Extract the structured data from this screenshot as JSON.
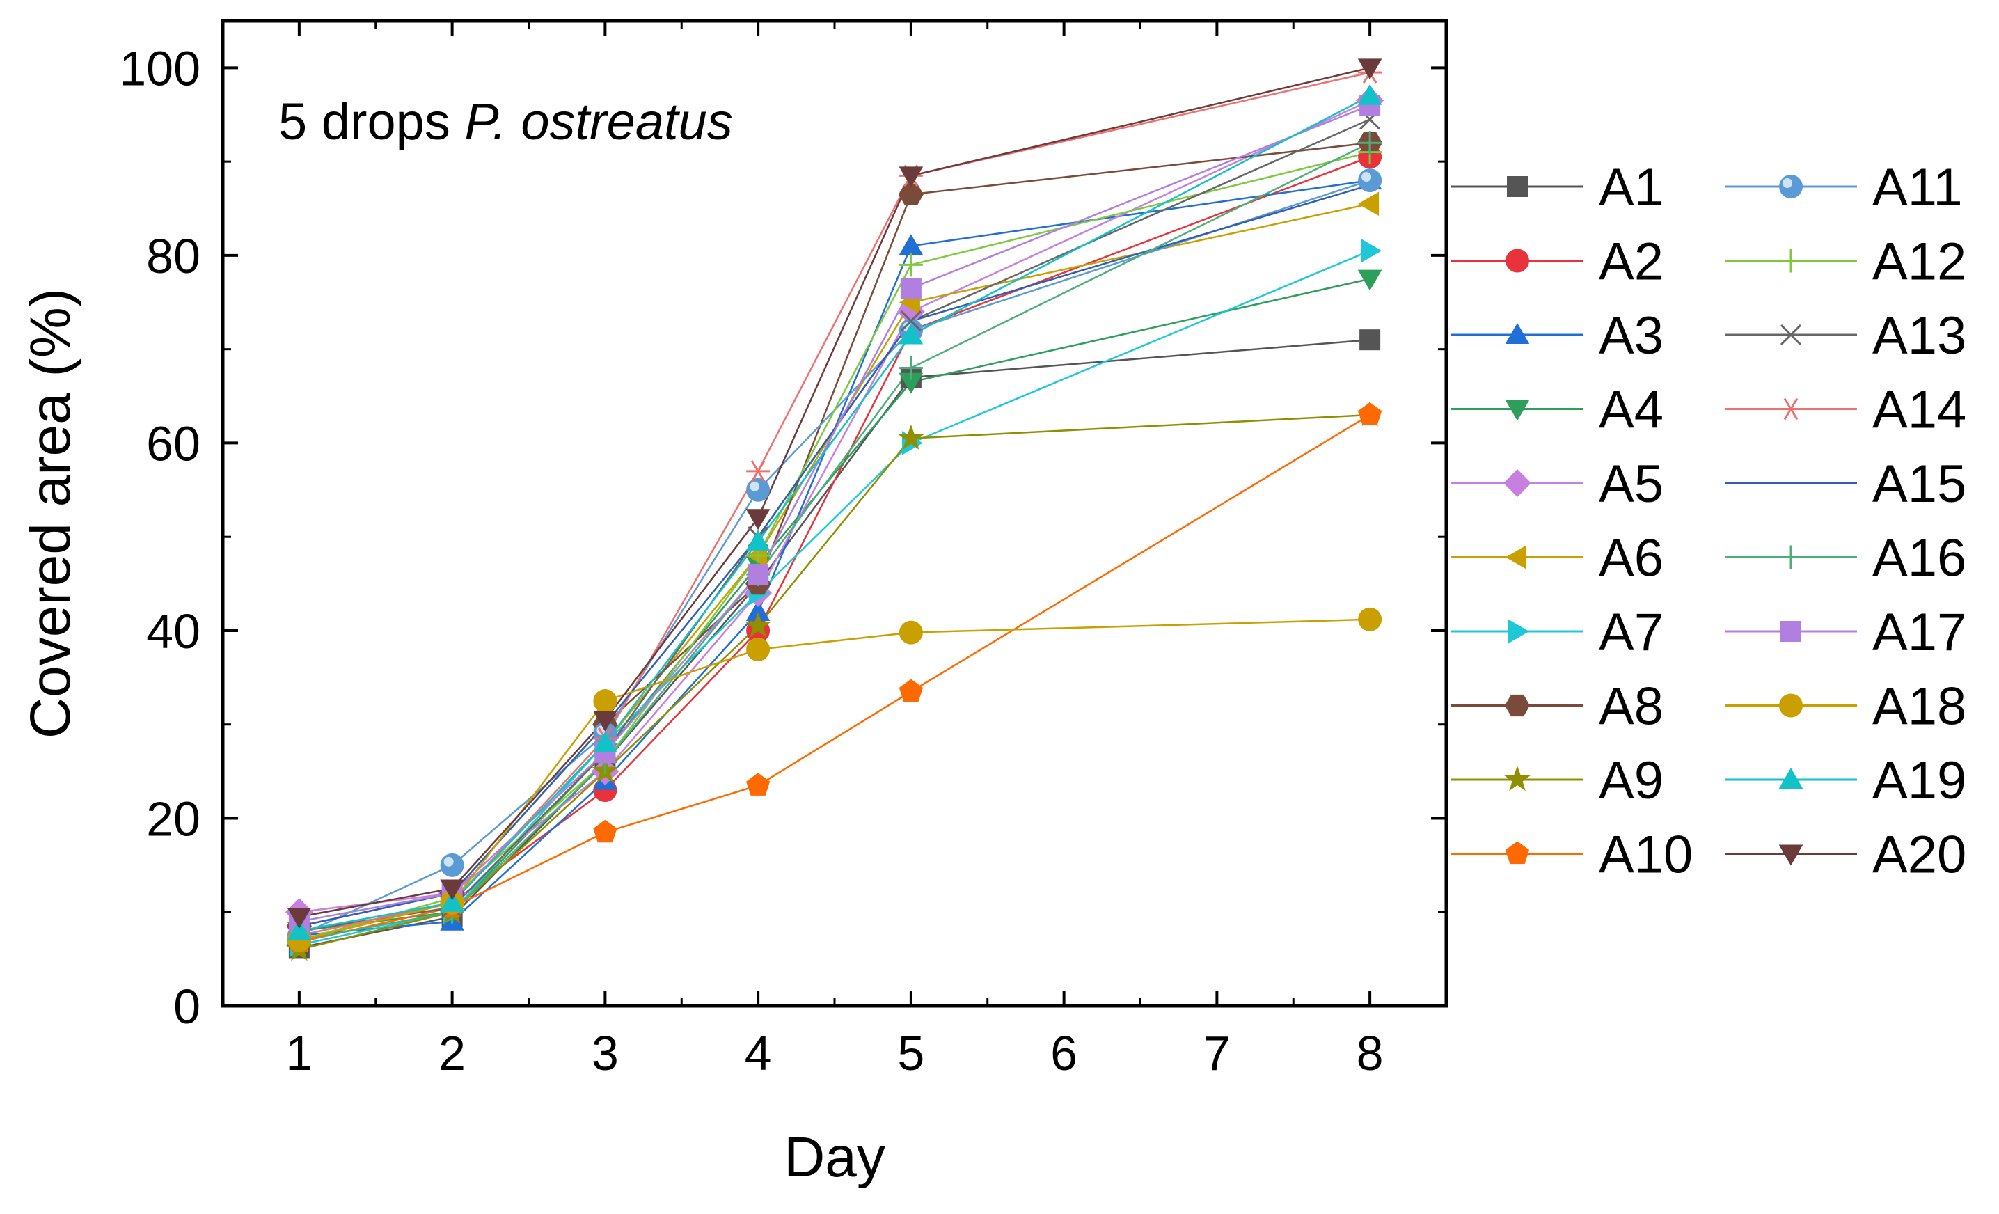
{
  "chart_data": {
    "type": "line",
    "title": "",
    "annotation": {
      "text": "5 drops ",
      "italic_text": "P. ostreatus"
    },
    "xlabel": "Day",
    "ylabel": "Covered area (%)",
    "x": [
      1,
      2,
      3,
      4,
      5,
      8
    ],
    "xlim": [
      0.5,
      8.5
    ],
    "ylim": [
      0,
      105
    ],
    "x_ticks": [
      1,
      2,
      3,
      4,
      5,
      6,
      7,
      8
    ],
    "y_ticks": [
      0,
      20,
      40,
      60,
      80,
      100
    ],
    "grid": false,
    "legend_position": "right",
    "series": [
      {
        "name": "A1",
        "color": "#555555",
        "marker": "square",
        "values": [
          6.2,
          9.5,
          26.0,
          45.0,
          67.0,
          71.0
        ]
      },
      {
        "name": "A2",
        "color": "#e8323c",
        "marker": "circle",
        "values": [
          7.0,
          11.0,
          23.0,
          40.0,
          72.0,
          90.5
        ]
      },
      {
        "name": "A3",
        "color": "#1f6fd6",
        "marker": "triangle-up",
        "values": [
          7.5,
          9.0,
          24.0,
          42.0,
          81.0,
          88.0
        ]
      },
      {
        "name": "A4",
        "color": "#2e9e5b",
        "marker": "triangle-down",
        "values": [
          8.0,
          10.0,
          27.0,
          47.0,
          66.5,
          77.5
        ]
      },
      {
        "name": "A5",
        "color": "#c77fe0",
        "marker": "diamond",
        "values": [
          10.0,
          12.0,
          25.0,
          44.0,
          74.0,
          96.5
        ]
      },
      {
        "name": "A6",
        "color": "#c9a000",
        "marker": "triangle-left",
        "values": [
          7.0,
          11.0,
          28.0,
          48.0,
          75.0,
          85.5
        ]
      },
      {
        "name": "A7",
        "color": "#1ec8d6",
        "marker": "triangle-right",
        "values": [
          6.5,
          10.0,
          28.0,
          44.0,
          60.0,
          80.5
        ]
      },
      {
        "name": "A8",
        "color": "#7a4b3a",
        "marker": "hexagon",
        "values": [
          8.5,
          12.0,
          30.0,
          45.0,
          86.5,
          92.0
        ]
      },
      {
        "name": "A9",
        "color": "#8f8f00",
        "marker": "star",
        "values": [
          6.0,
          10.0,
          25.0,
          40.5,
          60.5,
          63.0
        ]
      },
      {
        "name": "A10",
        "color": "#ff6a00",
        "marker": "pentagon",
        "values": [
          6.8,
          10.5,
          18.5,
          23.5,
          33.5,
          63.0
        ]
      },
      {
        "name": "A11",
        "color": "#5b9bd5",
        "marker": "sphere",
        "values": [
          7.5,
          15.0,
          29.0,
          55.0,
          72.0,
          88.0
        ]
      },
      {
        "name": "A12",
        "color": "#7fc93f",
        "marker": "plus",
        "values": [
          7.0,
          11.5,
          26.0,
          48.0,
          79.0,
          91.0
        ]
      },
      {
        "name": "A13",
        "color": "#666666",
        "marker": "x",
        "values": [
          8.0,
          10.5,
          27.0,
          50.0,
          73.0,
          94.5
        ]
      },
      {
        "name": "A14",
        "color": "#f07070",
        "marker": "asterisk",
        "values": [
          7.5,
          11.0,
          28.5,
          57.0,
          88.5,
          99.5
        ]
      },
      {
        "name": "A15",
        "color": "#2f5fb3",
        "marker": "none",
        "values": [
          8.5,
          12.0,
          30.0,
          50.0,
          73.0,
          87.5
        ]
      },
      {
        "name": "A16",
        "color": "#4caf7a",
        "marker": "plus",
        "values": [
          7.0,
          10.0,
          26.0,
          46.0,
          68.0,
          92.0
        ]
      },
      {
        "name": "A17",
        "color": "#b07fe0",
        "marker": "square",
        "values": [
          9.0,
          12.0,
          27.0,
          46.0,
          76.5,
          96.0
        ]
      },
      {
        "name": "A18",
        "color": "#c9a000",
        "marker": "circle",
        "values": [
          7.0,
          11.0,
          32.5,
          38.0,
          39.8,
          41.2
        ]
      },
      {
        "name": "A19",
        "color": "#12c2c8",
        "marker": "triangle-up",
        "values": [
          8.0,
          11.0,
          28.0,
          49.5,
          71.5,
          97.0
        ]
      },
      {
        "name": "A20",
        "color": "#6b3a3a",
        "marker": "triangle-down",
        "values": [
          9.5,
          12.5,
          30.5,
          52.0,
          88.5,
          100.0
        ]
      }
    ]
  }
}
